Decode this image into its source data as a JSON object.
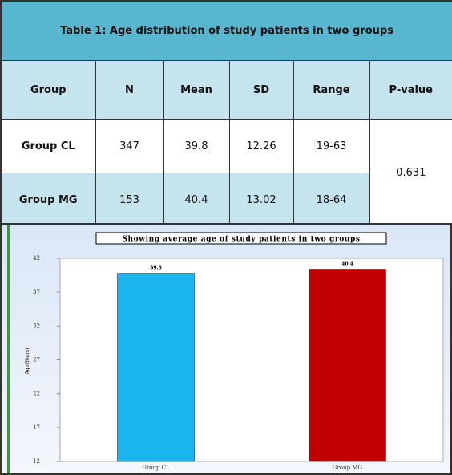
{
  "table": {
    "title": "Table 1: Age distribution of study patients in two groups",
    "header": [
      "Group",
      "N",
      "Mean",
      "SD",
      "Range",
      "P-value"
    ],
    "rows": [
      [
        "Group CL",
        "347",
        "39.8",
        "12.26",
        "19-63"
      ],
      [
        "Group MG",
        "153",
        "40.4",
        "13.02",
        "18-64"
      ]
    ],
    "p_value": "0.631"
  },
  "chart_data": {
    "type": "bar",
    "title": "Showing average age of study patients in two groups",
    "y_label": "Age(Years)",
    "categories": [
      "Group CL",
      "Group MG"
    ],
    "values": [
      39.8,
      40.4
    ],
    "colors": [
      "#1ab4ee",
      "#c00000"
    ],
    "ylim": [
      12,
      42
    ],
    "yticks": [
      12,
      17,
      22,
      27,
      32,
      37,
      42
    ]
  }
}
